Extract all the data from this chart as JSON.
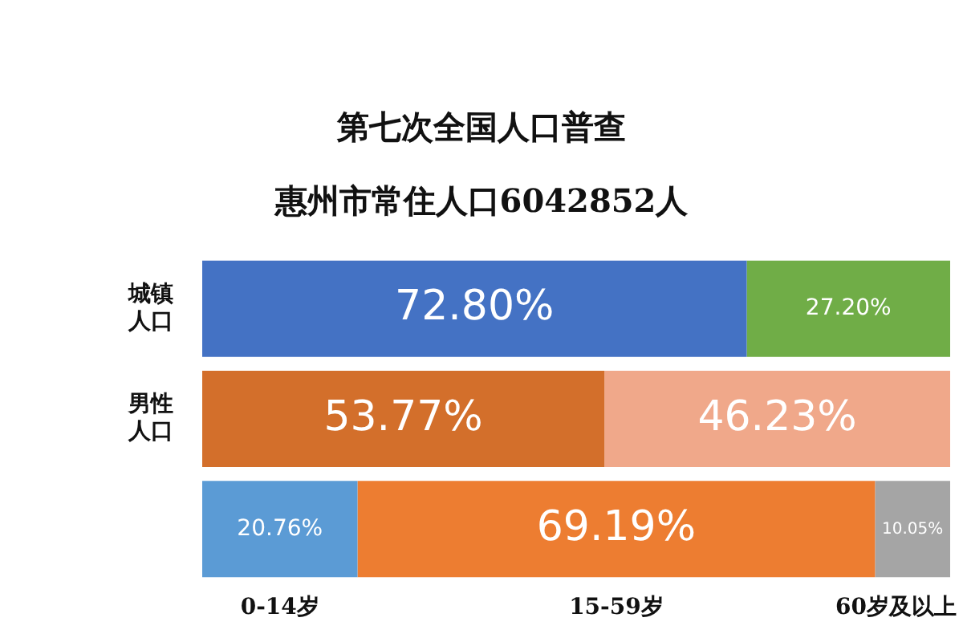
{
  "chart_data": {
    "type": "bar",
    "orientation": "horizontal",
    "stacked": true,
    "title": "第七次全国人口普查",
    "subtitle": "惠州市常住人口6042852人",
    "categories": [
      "城镇人口",
      "男性人口",
      null
    ],
    "series": [
      {
        "colors": [
          "#4472c4",
          "#d36f2b",
          "#5b9bd5"
        ],
        "values": [
          72.8,
          53.77,
          20.76
        ],
        "value_labels": [
          "72.80%",
          "53.77%",
          "20.76%"
        ]
      },
      {
        "colors": [
          "#70ad47",
          "#f0a88a",
          "#ed7d31"
        ],
        "values": [
          27.2,
          46.23,
          69.19
        ],
        "value_labels": [
          "27.20%",
          "46.23%",
          "69.19%"
        ]
      },
      {
        "colors": [
          null,
          null,
          "#a5a5a5"
        ],
        "values": [
          null,
          null,
          10.05
        ],
        "value_labels": [
          null,
          null,
          "10.05%"
        ]
      }
    ],
    "tick_labels": "y",
    "grid": false,
    "legend": false,
    "annotations": [
      "0-14岁",
      "15-59岁",
      "60岁及以上"
    ]
  }
}
